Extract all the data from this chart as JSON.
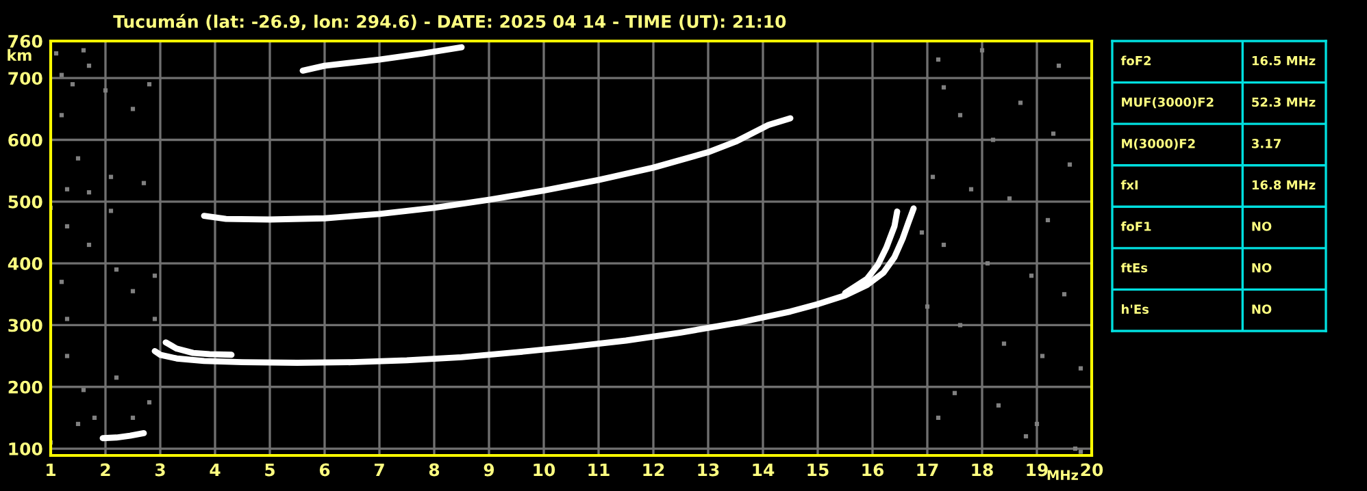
{
  "chart_data": [
    {
      "type": "line",
      "title": "Tucumán (lat: -26.9, lon: 294.6) - DATE: 2025 04 14 - TIME (UT): 21:10",
      "xlabel": "MHz",
      "ylabel": "km",
      "xlim": [
        1,
        20
      ],
      "xticks": [
        1,
        2,
        3,
        4,
        5,
        6,
        7,
        8,
        9,
        10,
        11,
        12,
        13,
        14,
        15,
        16,
        17,
        18,
        19,
        20
      ],
      "ylim": [
        89,
        760
      ],
      "yticks": [
        100,
        200,
        300,
        400,
        500,
        600,
        700,
        760
      ],
      "grid": true,
      "line_style": "solid",
      "series": [
        {
          "color": "#ffffff",
          "x": [
            2.9,
            3.0,
            3.3,
            3.8,
            4.5,
            5.5,
            6.5,
            7.5,
            8.5,
            9.5,
            10.5,
            11.5,
            12.5,
            13.5,
            14.5,
            15.0,
            15.5,
            15.9,
            16.2,
            16.4,
            16.55,
            16.65,
            16.75
          ],
          "values": [
            258,
            252,
            246,
            242,
            240,
            239,
            240,
            243,
            248,
            256,
            265,
            275,
            288,
            303,
            322,
            334,
            348,
            365,
            385,
            410,
            440,
            465,
            489
          ]
        },
        {
          "color": "#ffffff",
          "x": [
            15.5,
            15.9,
            16.1,
            16.25,
            16.4,
            16.45
          ],
          "values": [
            352,
            375,
            398,
            425,
            460,
            484
          ]
        },
        {
          "color": "#ffffff",
          "x": [
            3.1,
            3.3,
            3.6,
            3.9,
            4.3
          ],
          "values": [
            272,
            262,
            255,
            253,
            252
          ]
        },
        {
          "color": "#ffffff",
          "x": [
            1.95,
            2.2,
            2.45,
            2.7
          ],
          "values": [
            117,
            118,
            121,
            125
          ]
        },
        {
          "color": "#ffffff",
          "x": [
            3.8,
            4.2,
            5.0,
            6.0,
            7.0,
            8.0,
            9.0,
            10.0,
            11.0,
            12.0,
            13.0,
            13.5,
            14.1,
            14.5
          ],
          "values": [
            477,
            472,
            471,
            473,
            480,
            490,
            503,
            518,
            535,
            555,
            580,
            597,
            624,
            635
          ]
        },
        {
          "color": "#ffffff",
          "x": [
            5.6,
            6.0,
            7.0,
            7.8,
            8.5
          ],
          "values": [
            712,
            720,
            730,
            740,
            750
          ]
        },
        {
          "type": "scatter",
          "marker": "square",
          "color": "#808080",
          "x": [
            1.1,
            1.2,
            1.4,
            1.6,
            1.7,
            2.0,
            2.5,
            2.8,
            1.2,
            1.5,
            1.3,
            1.7,
            2.1,
            2.7,
            1.0,
            1.3,
            2.1,
            1.7,
            1.2,
            1.3,
            2.2,
            2.5,
            2.9,
            1.3,
            1.6,
            2.2,
            2.8,
            1.8,
            1.5,
            2.5,
            1.0,
            2.9,
            17.3,
            17.6,
            18.2,
            18.7,
            19.3,
            19.6,
            17.1,
            17.8,
            18.5,
            19.2,
            17.3,
            18.1,
            18.9,
            19.5,
            17.0,
            17.6,
            18.4,
            19.1,
            19.8,
            17.5,
            18.3,
            19.0,
            19.7,
            19.8,
            18.8,
            17.2,
            16.9,
            17.2,
            18.0,
            19.4
          ],
          "values": [
            740,
            705,
            690,
            745,
            720,
            680,
            650,
            690,
            640,
            570,
            520,
            515,
            540,
            530,
            490,
            460,
            485,
            430,
            370,
            310,
            390,
            355,
            380,
            250,
            195,
            215,
            175,
            150,
            140,
            150,
            110,
            310,
            685,
            640,
            600,
            660,
            610,
            560,
            540,
            520,
            505,
            470,
            430,
            400,
            380,
            350,
            330,
            300,
            270,
            250,
            230,
            190,
            170,
            140,
            100,
            95,
            120,
            150,
            450,
            730,
            745,
            720
          ]
        }
      ]
    },
    {
      "type": "other",
      "annotations": [
        "foF2",
        "16.5 MHz",
        "MUF(3000)F2",
        "52.3 MHz",
        "M(3000)F2",
        "3.17",
        "fxI",
        "16.8 MHz",
        "foF1",
        "NO",
        "ftEs",
        "NO",
        "h'Es",
        "NO"
      ]
    }
  ]
}
